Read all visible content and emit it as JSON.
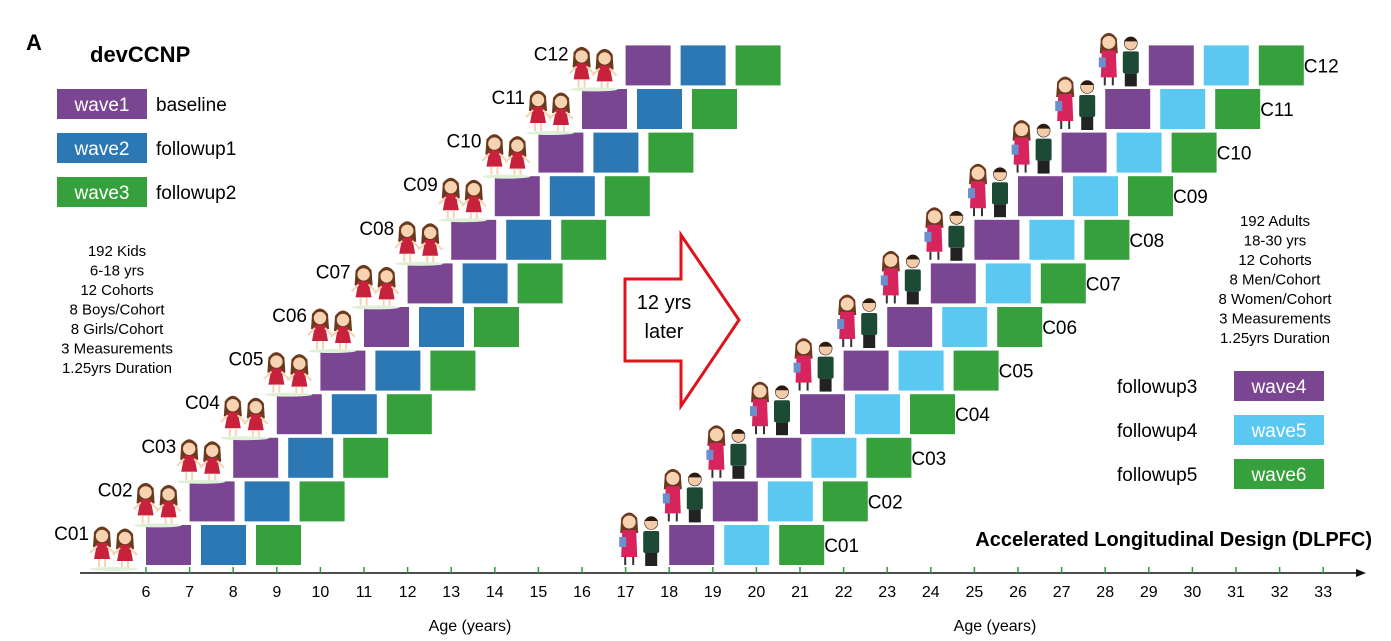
{
  "panel_label": "A",
  "title": "devCCNP",
  "legend_left": [
    {
      "wave": "wave1",
      "label": "baseline",
      "color": "#7b4691"
    },
    {
      "wave": "wave2",
      "label": "followup1",
      "color": "#2b78b4"
    },
    {
      "wave": "wave3",
      "label": "followup2",
      "color": "#36a03c"
    }
  ],
  "legend_right": [
    {
      "wave": "wave4",
      "label": "followup3",
      "color": "#7b4691"
    },
    {
      "wave": "wave5",
      "label": "followup4",
      "color": "#5bc8f2"
    },
    {
      "wave": "wave6",
      "label": "followup5",
      "color": "#36a03c"
    }
  ],
  "kids_info": [
    "192 Kids",
    "6-18 yrs",
    "12 Cohorts",
    "8 Boys/Cohort",
    "8 Girls/Cohort",
    "3 Measurements",
    "1.25yrs Duration"
  ],
  "adults_info": [
    "192 Adults",
    "18-30 yrs",
    "12 Cohorts",
    "8 Men/Cohort",
    "8 Women/Cohort",
    "3 Measurements",
    "1.25yrs Duration"
  ],
  "arrow_text": [
    "12 yrs",
    "later"
  ],
  "design_label": "Accelerated Longitudinal Design (DLPFC)",
  "xlabel": "Age (years)",
  "ages": [
    6,
    7,
    8,
    9,
    10,
    11,
    12,
    13,
    14,
    15,
    16,
    17,
    18,
    19,
    20,
    21,
    22,
    23,
    24,
    25,
    26,
    27,
    28,
    29,
    30,
    31,
    32,
    33
  ],
  "cohorts": [
    "C01",
    "C02",
    "C03",
    "C04",
    "C05",
    "C06",
    "C07",
    "C08",
    "C09",
    "C10",
    "C11",
    "C12"
  ],
  "kid_start_ages": [
    6,
    7,
    8,
    9,
    10,
    11,
    12,
    13,
    14,
    15,
    16,
    17
  ],
  "adult_start_ages": [
    18,
    19,
    20,
    21,
    22,
    23,
    24,
    25,
    26,
    27,
    28,
    29
  ],
  "colors": {
    "wave1": "#7b4691",
    "wave2": "#2b78b4",
    "wave3": "#36a03c",
    "wave5": "#5bc8f2",
    "arrow": "#e0131b"
  }
}
